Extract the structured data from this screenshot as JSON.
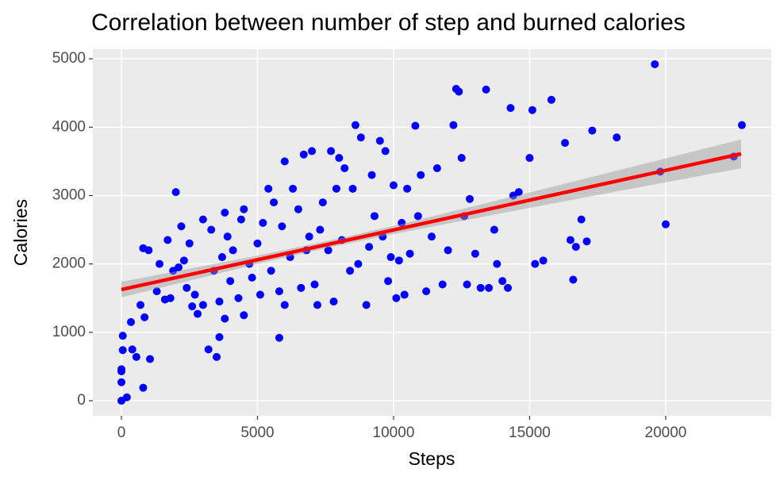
{
  "chart_data": {
    "type": "scatter",
    "title": "Correlation between number of step and burned calories",
    "x_label": "Steps",
    "y_label": "Calories",
    "xlim": [
      -1050,
      23880
    ],
    "ylim": [
      -220,
      5140
    ],
    "xticks": [
      0,
      5000,
      10000,
      15000,
      20000
    ],
    "yticks": [
      0,
      1000,
      2000,
      3000,
      4000,
      5000
    ],
    "grid": true,
    "series": [
      {
        "color": "#0000ff",
        "x": [
          0,
          0,
          0,
          0,
          50,
          50,
          200,
          350,
          400,
          550,
          700,
          800,
          800,
          850,
          1000,
          1050,
          1300,
          1400,
          1600,
          1700,
          1800,
          1900,
          2000,
          2100,
          2200,
          2300,
          2400,
          2500,
          2600,
          2700,
          2800,
          3000,
          3000,
          3200,
          3300,
          3400,
          3500,
          3600,
          3600,
          3700,
          3800,
          3800,
          3900,
          4000,
          4100,
          4300,
          4400,
          4500,
          4500,
          4700,
          4800,
          5000,
          5100,
          5200,
          5400,
          5500,
          5600,
          5800,
          5800,
          5900,
          6000,
          6000,
          6200,
          6300,
          6500,
          6600,
          6700,
          6800,
          6900,
          7000,
          7100,
          7200,
          7300,
          7400,
          7600,
          7700,
          7800,
          7900,
          8000,
          8100,
          8200,
          8400,
          8500,
          8600,
          8700,
          8800,
          9000,
          9100,
          9200,
          9300,
          9500,
          9600,
          9700,
          9800,
          9900,
          10000,
          10100,
          10200,
          10300,
          10400,
          10500,
          10600,
          10800,
          10900,
          11000,
          11200,
          11400,
          11600,
          11800,
          12000,
          12200,
          12300,
          12400,
          12500,
          12600,
          12700,
          12800,
          13000,
          13200,
          13400,
          13500,
          13700,
          13800,
          14000,
          14200,
          14300,
          14400,
          14600,
          15000,
          15100,
          15200,
          15500,
          15800,
          16300,
          16500,
          16600,
          16700,
          16900,
          17100,
          17300,
          18200,
          19600,
          19800,
          20000,
          22500,
          22800
        ],
        "values": [
          0,
          270,
          430,
          460,
          740,
          950,
          50,
          1150,
          750,
          640,
          1400,
          2230,
          190,
          1220,
          2200,
          610,
          1600,
          2000,
          1480,
          2350,
          1500,
          1900,
          3050,
          1950,
          2550,
          2050,
          1650,
          2300,
          1380,
          1550,
          1270,
          2650,
          1400,
          750,
          2500,
          1900,
          640,
          1450,
          930,
          2100,
          2750,
          1200,
          2400,
          1750,
          2200,
          1500,
          2650,
          2800,
          1250,
          2000,
          1800,
          2300,
          1550,
          2600,
          3100,
          1900,
          2900,
          1600,
          920,
          2550,
          3500,
          1400,
          2100,
          3100,
          2800,
          1650,
          3600,
          2200,
          2400,
          3650,
          1700,
          1400,
          2500,
          2900,
          2200,
          3650,
          1450,
          3100,
          3550,
          2350,
          3400,
          1900,
          3100,
          4030,
          2000,
          3850,
          1400,
          2250,
          3300,
          2700,
          3800,
          2400,
          3650,
          1750,
          2100,
          3150,
          1500,
          2050,
          2600,
          1550,
          3100,
          2150,
          4020,
          2700,
          3300,
          1600,
          2400,
          3400,
          1700,
          2200,
          4030,
          4560,
          4520,
          3550,
          2700,
          1700,
          2950,
          2150,
          1650,
          4550,
          1650,
          2500,
          2000,
          1750,
          1650,
          4280,
          3000,
          3050,
          3550,
          4250,
          2000,
          2050,
          4400,
          3770,
          2350,
          1770,
          2250,
          2650,
          2330,
          3950,
          3850,
          4920,
          3350,
          2580,
          3570,
          4030
        ]
      }
    ],
    "fit": {
      "color": "#ff0000",
      "x": [
        0,
        22770
      ],
      "y": [
        1625,
        3610
      ]
    },
    "band": {
      "color": "#999999",
      "x": [
        0,
        5000,
        7600,
        10000,
        15000,
        20000,
        22770
      ],
      "lower": [
        1511,
        2000,
        2238,
        2437,
        2821,
        3194,
        3399
      ],
      "upper": [
        1739,
        2122,
        2338,
        2557,
        3045,
        3544,
        3821
      ]
    }
  }
}
